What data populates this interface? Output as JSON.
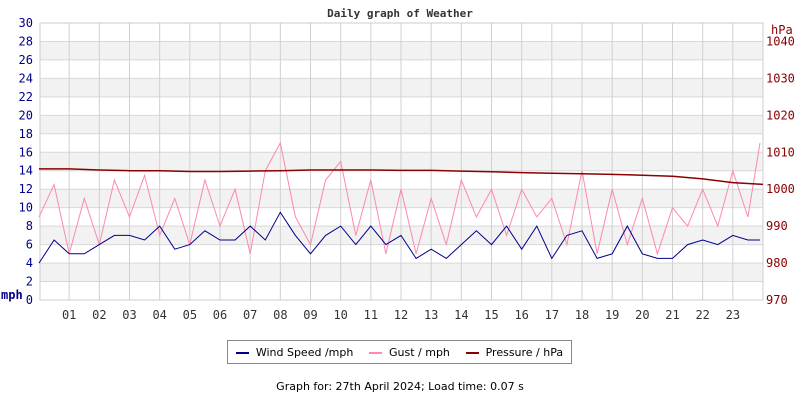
{
  "chart_data": {
    "type": "line",
    "title": "Daily graph of Weather",
    "ylabel": "mph",
    "y2label": "hPa",
    "ylim": [
      0,
      30
    ],
    "y2lim": [
      970,
      1045
    ],
    "xlim": [
      0,
      24
    ],
    "yticks": [
      "0",
      "2",
      "4",
      "6",
      "8",
      "10",
      "12",
      "14",
      "16",
      "18",
      "20",
      "22",
      "24",
      "26",
      "28",
      "30"
    ],
    "y2ticks": [
      "970",
      "980",
      "990",
      "1000",
      "1010",
      "1020",
      "1030",
      "1040"
    ],
    "xticks": [
      "01",
      "02",
      "03",
      "04",
      "05",
      "06",
      "07",
      "08",
      "09",
      "10",
      "11",
      "12",
      "13",
      "14",
      "15",
      "16",
      "17",
      "18",
      "19",
      "20",
      "21",
      "22",
      "23"
    ],
    "grid": true,
    "legend_placement": "bottom",
    "series": [
      {
        "name": "Wind Speed /mph",
        "color": "#00008b",
        "axis": "left",
        "x": [
          0,
          0.5,
          1,
          1.5,
          2,
          2.5,
          3,
          3.5,
          4,
          4.5,
          5,
          5.5,
          6,
          6.5,
          7,
          7.5,
          8,
          8.5,
          9,
          9.5,
          10,
          10.5,
          11,
          11.5,
          12,
          12.5,
          13,
          13.5,
          14,
          14.5,
          15,
          15.5,
          16,
          16.5,
          17,
          17.5,
          18,
          18.5,
          19,
          19.5,
          20,
          20.5,
          21,
          21.5,
          22,
          22.5,
          23,
          23.5,
          23.9
        ],
        "values": [
          4,
          6.5,
          5,
          5,
          6,
          7,
          7,
          6.5,
          8,
          5.5,
          6,
          7.5,
          6.5,
          6.5,
          8,
          6.5,
          9.5,
          7,
          5,
          7,
          8,
          6,
          8,
          6,
          7,
          4.5,
          5.5,
          4.5,
          6,
          7.5,
          6,
          8,
          5.5,
          8,
          4.5,
          7,
          7.5,
          4.5,
          5,
          8,
          5,
          4.5,
          4.5,
          6,
          6.5,
          6,
          7,
          6.5,
          6.5
        ]
      },
      {
        "name": "Gust / mph",
        "color": "#ff88aa",
        "axis": "left",
        "x": [
          0,
          0.5,
          1,
          1.5,
          2,
          2.5,
          3,
          3.5,
          4,
          4.5,
          5,
          5.5,
          6,
          6.5,
          7,
          7.5,
          8,
          8.5,
          9,
          9.5,
          10,
          10.5,
          11,
          11.5,
          12,
          12.5,
          13,
          13.5,
          14,
          14.5,
          15,
          15.5,
          16,
          16.5,
          17,
          17.5,
          18,
          18.5,
          19,
          19.5,
          20,
          20.5,
          21,
          21.5,
          22,
          22.5,
          23,
          23.5,
          23.9
        ],
        "values": [
          9,
          12.5,
          5,
          11,
          6,
          13,
          9,
          13.5,
          7,
          11,
          6,
          13,
          8,
          12,
          5,
          14,
          17,
          9,
          6,
          13,
          15,
          7,
          13,
          5,
          12,
          5,
          11,
          6,
          13,
          9,
          12,
          7,
          12,
          9,
          11,
          6,
          14,
          5,
          12,
          6,
          11,
          5,
          10,
          8,
          12,
          8,
          14,
          9,
          17
        ]
      },
      {
        "name": "Pressure / hPa",
        "color": "#8b0000",
        "axis": "right",
        "x": [
          0,
          1,
          2,
          3,
          4,
          5,
          6,
          7,
          8,
          9,
          10,
          11,
          12,
          13,
          14,
          15,
          16,
          17,
          18,
          19,
          20,
          21,
          22,
          23,
          24
        ],
        "values": [
          1005.5,
          1005.5,
          1005.2,
          1005,
          1005,
          1004.8,
          1004.8,
          1004.9,
          1005,
          1005.2,
          1005.2,
          1005.2,
          1005.1,
          1005.1,
          1004.9,
          1004.7,
          1004.5,
          1004.3,
          1004.2,
          1004,
          1003.8,
          1003.5,
          1002.8,
          1001.8,
          1001.3
        ]
      }
    ]
  },
  "legend": {
    "wind": "Wind Speed /mph",
    "gust": "Gust / mph",
    "pressure": "Pressure / hPa"
  },
  "footer": "Graph for: 27th April 2024; Load time: 0.07 s"
}
